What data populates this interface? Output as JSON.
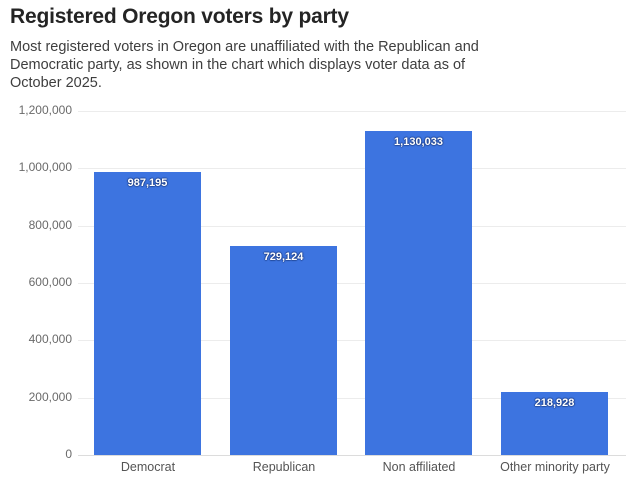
{
  "header": {
    "title": "Registered Oregon voters by party",
    "subtitle_lines": [
      "Most registered voters in Oregon are unaffiliated with the Republican and",
      "Democratic party, as shown in the chart which displays voter data as of",
      "October 2025."
    ]
  },
  "chart_data": {
    "type": "bar",
    "title": "Registered Oregon voters by party",
    "subtitle": "Most registered voters in Oregon are unaffiliated with the Republican and Democratic party, as shown in the chart which displays voter data as of October 2025.",
    "categories": [
      "Democrat",
      "Republican",
      "Non affiliated",
      "Other minority party"
    ],
    "values": [
      987195,
      729124,
      1130033,
      218928
    ],
    "value_labels": [
      "987,195",
      "729,124",
      "1,130,033",
      "218,928"
    ],
    "xlabel": "",
    "ylabel": "",
    "ylim": [
      0,
      1200000
    ],
    "ytick_interval": 200000,
    "ytick_labels": [
      "0",
      "200,000",
      "400,000",
      "600,000",
      "800,000",
      "1,000,000",
      "1,200,000"
    ],
    "grid": true,
    "legend": false,
    "bar_color": "#3d74e0",
    "bar_label_color": "#ffffff",
    "axis_label_color": "#6a6a6a",
    "gridline_color": "#ececec"
  }
}
